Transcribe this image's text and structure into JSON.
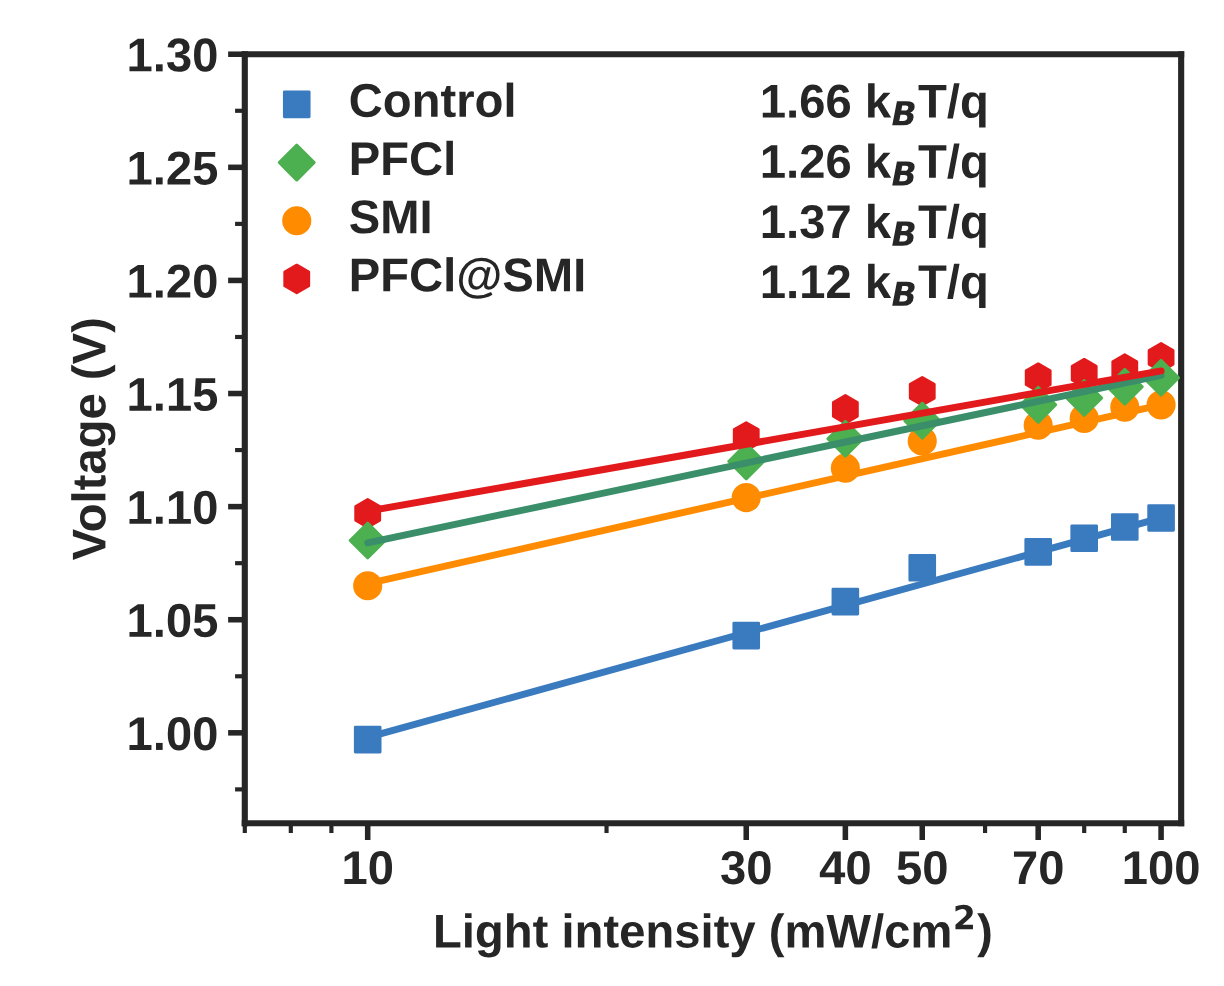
{
  "chart_data": {
    "type": "scatter",
    "xlabel": "Light intensity (mW/cm$^{2}$)",
    "ylabel": "Voltage (V)",
    "log": "x",
    "xlim": [
      7,
      106
    ],
    "xticks": [
      10,
      30,
      40,
      50,
      70,
      100
    ],
    "ylim": [
      0.96,
      1.3
    ],
    "yticks": [
      {
        "value": 1.0,
        "label": "1.00"
      },
      {
        "value": 1.05,
        "label": "1.05"
      },
      {
        "value": 1.1,
        "label": "1.10"
      },
      {
        "value": 1.15,
        "label": "1.15"
      },
      {
        "value": 1.2,
        "label": "1.20"
      },
      {
        "value": 1.25,
        "label": "1.25"
      },
      {
        "value": 1.3,
        "label": "1.30"
      }
    ],
    "grid": false,
    "legend": "top left",
    "annotations": [
      "1.66 k$_{B}$T/q",
      "1.26 k$_{B}$T/q",
      "1.37 k$_{B}$T/q",
      "1.12 k$_{B}$T/q"
    ],
    "series": [
      {
        "name": "Control",
        "marker": "square",
        "color": "#3a7bbf",
        "x": [
          10,
          30,
          40,
          50,
          70,
          80,
          90,
          100
        ],
        "values": [
          0.997,
          1.043,
          1.058,
          1.073,
          1.08,
          1.086,
          1.091,
          1.095
        ]
      },
      {
        "name": "PFCl",
        "marker": "diamond",
        "color": "#4caf50",
        "x": [
          10,
          30,
          40,
          50,
          70,
          80,
          90,
          100
        ],
        "values": [
          1.085,
          1.12,
          1.13,
          1.138,
          1.145,
          1.148,
          1.153,
          1.157
        ]
      },
      {
        "name": "SMI",
        "marker": "circle",
        "color": "#ff8c00",
        "x": [
          10,
          30,
          40,
          50,
          70,
          80,
          90,
          100
        ],
        "values": [
          1.065,
          1.104,
          1.117,
          1.129,
          1.136,
          1.139,
          1.144,
          1.145
        ]
      },
      {
        "name": "PFCl@SMI",
        "color": "#e31a1c",
        "x": [
          10,
          30,
          40,
          50,
          70,
          80,
          90,
          100
        ],
        "values": [
          1.097,
          1.131,
          1.143,
          1.151,
          1.157,
          1.159,
          1.161,
          1.166
        ]
      },
      {
        "type": "line",
        "color": "#3a7bbf",
        "x": [
          10,
          100
        ],
        "values": [
          0.998,
          1.095
        ]
      },
      {
        "type": "line",
        "color": "#3a8f6a",
        "x": [
          10,
          100
        ],
        "values": [
          1.084,
          1.158
        ]
      },
      {
        "type": "line",
        "color": "#ff8c00",
        "x": [
          10,
          100
        ],
        "values": [
          1.066,
          1.145
        ]
      },
      {
        "type": "line",
        "color": "#e31a1c",
        "x": [
          10,
          100
        ],
        "values": [
          1.098,
          1.16
        ]
      }
    ]
  }
}
